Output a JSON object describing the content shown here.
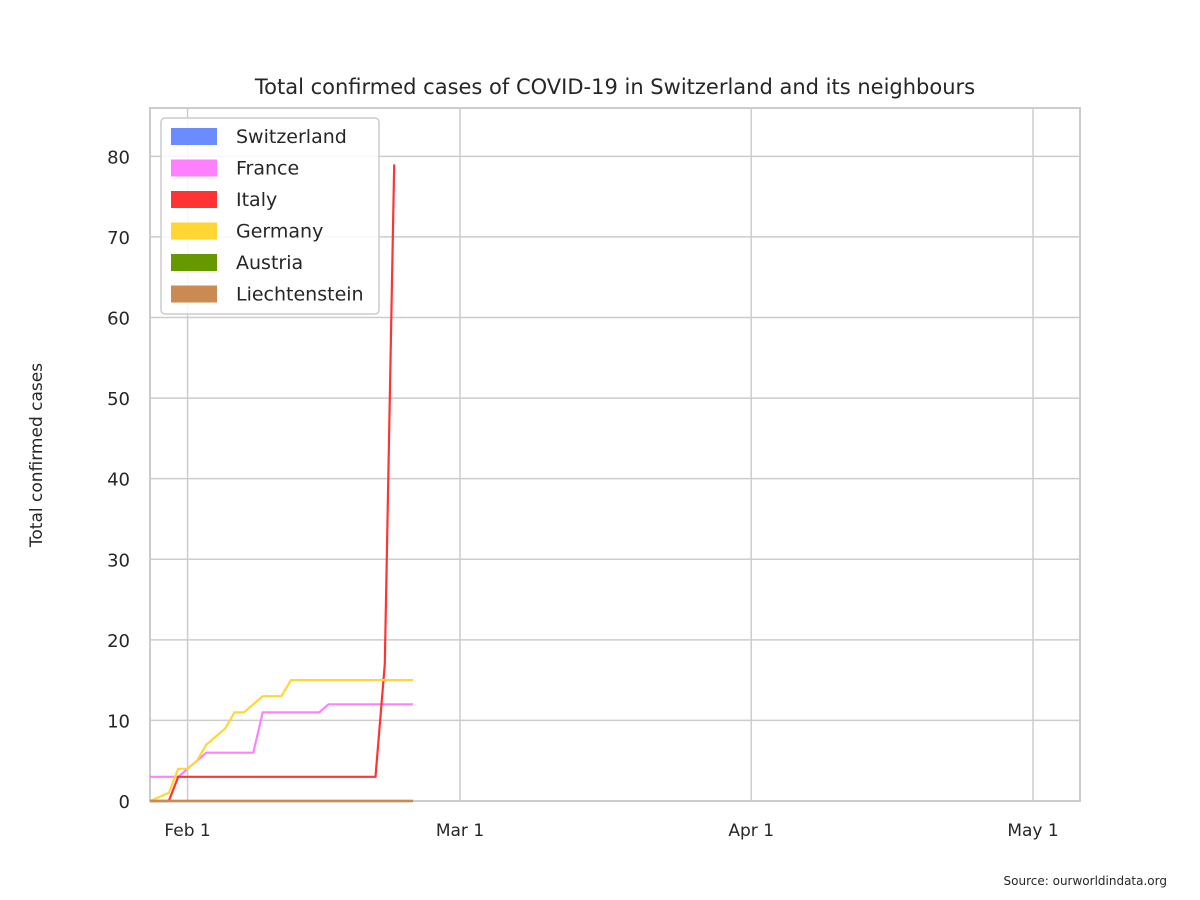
{
  "chart_data": {
    "type": "line",
    "title": "Total confirmed cases of COVID-19 in Switzerland and its neighbours",
    "xlabel": "",
    "ylabel": "Total confirmed cases",
    "x_axis": {
      "type": "date",
      "range": [
        "2020-01-28",
        "2020-05-06"
      ],
      "ticks": [
        {
          "date": "2020-02-01",
          "label": "Feb 1"
        },
        {
          "date": "2020-03-01",
          "label": "Mar 1"
        },
        {
          "date": "2020-04-01",
          "label": "Apr 1"
        },
        {
          "date": "2020-05-01",
          "label": "May 1"
        }
      ]
    },
    "ylim": [
      0,
      86
    ],
    "yticks": [
      0,
      10,
      20,
      30,
      40,
      50,
      60,
      70,
      80
    ],
    "grid": true,
    "legend_position": "top-left",
    "series": [
      {
        "name": "Switzerland",
        "color": "#6b8cff",
        "x": [
          "2020-01-28",
          "2020-02-25"
        ],
        "y": [
          0,
          0
        ]
      },
      {
        "name": "France",
        "color": "#ff80ff",
        "x": [
          "2020-01-28",
          "2020-01-31",
          "2020-02-01",
          "2020-02-02",
          "2020-02-03",
          "2020-02-08",
          "2020-02-09",
          "2020-02-15",
          "2020-02-16",
          "2020-02-25"
        ],
        "y": [
          3,
          3,
          4,
          5,
          6,
          6,
          11,
          11,
          12,
          12
        ]
      },
      {
        "name": "Italy",
        "color": "#ff3333",
        "x": [
          "2020-01-28",
          "2020-01-30",
          "2020-01-31",
          "2020-02-21",
          "2020-02-22",
          "2020-02-23"
        ],
        "y": [
          0,
          0,
          3,
          3,
          17,
          79
        ]
      },
      {
        "name": "Germany",
        "color": "#ffd633",
        "x": [
          "2020-01-28",
          "2020-01-30",
          "2020-01-31",
          "2020-02-01",
          "2020-02-02",
          "2020-02-03",
          "2020-02-04",
          "2020-02-05",
          "2020-02-06",
          "2020-02-07",
          "2020-02-08",
          "2020-02-09",
          "2020-02-10",
          "2020-02-11",
          "2020-02-12",
          "2020-02-13",
          "2020-02-25"
        ],
        "y": [
          0,
          1,
          4,
          4,
          5,
          7,
          8,
          9,
          11,
          11,
          12,
          13,
          13,
          13,
          15,
          15,
          15
        ]
      },
      {
        "name": "Austria",
        "color": "#669900",
        "x": [
          "2020-01-28",
          "2020-02-25"
        ],
        "y": [
          0,
          0
        ]
      },
      {
        "name": "Liechtenstein",
        "color": "#c98b52",
        "x": [
          "2020-01-28",
          "2020-02-25"
        ],
        "y": [
          0,
          0
        ]
      }
    ]
  },
  "source_note": "Source: ourworldindata.org"
}
